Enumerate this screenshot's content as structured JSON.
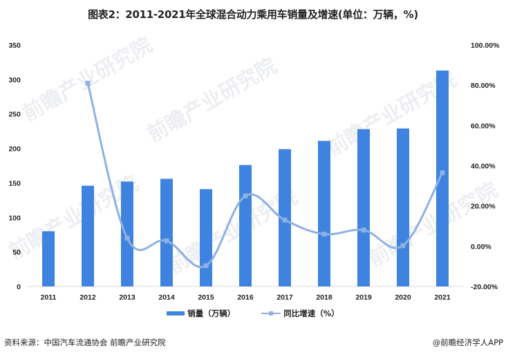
{
  "title": "图表2：2011-2021年全球混合动力乘用车销量及增速(单位：万辆，%)",
  "legend": {
    "bar_label": "销量（万辆）",
    "line_label": "同比增速（%）"
  },
  "footer": {
    "source": "资料来源：中国汽车流通协会 前瞻产业研究院",
    "brand": "@前瞻经济学人APP"
  },
  "watermark": "前瞻产业研究院",
  "colors": {
    "bar": "#3e83df",
    "line": "#8fb0e2",
    "axis": "#d9d9d9"
  },
  "chart_data": {
    "type": "bar+line",
    "title": "图表2：2011-2021年全球混合动力乘用车销量及增速(单位：万辆，%)",
    "categories": [
      "2011",
      "2012",
      "2013",
      "2014",
      "2015",
      "2016",
      "2017",
      "2018",
      "2019",
      "2020",
      "2021"
    ],
    "series": [
      {
        "name": "销量（万辆）",
        "type": "bar",
        "axis": "left",
        "values": [
          80,
          146,
          152,
          156,
          141,
          176,
          199,
          211,
          228,
          229,
          313
        ]
      },
      {
        "name": "同比增速（%）",
        "type": "line",
        "axis": "right",
        "values": [
          null,
          81.0,
          4.0,
          2.7,
          -9.7,
          25.0,
          13.0,
          6.0,
          8.0,
          0.3,
          36.5
        ]
      }
    ],
    "left_axis": {
      "ylim": [
        0,
        350
      ],
      "ticks": [
        "0",
        "50",
        "100",
        "150",
        "200",
        "250",
        "300",
        "350"
      ]
    },
    "right_axis": {
      "ylim": [
        -20,
        100
      ],
      "ticks": [
        "-20.00%",
        "0.00%",
        "20.00%",
        "40.00%",
        "60.00%",
        "80.00%",
        "100.00%"
      ]
    },
    "grid": false,
    "legend_position": "bottom"
  }
}
